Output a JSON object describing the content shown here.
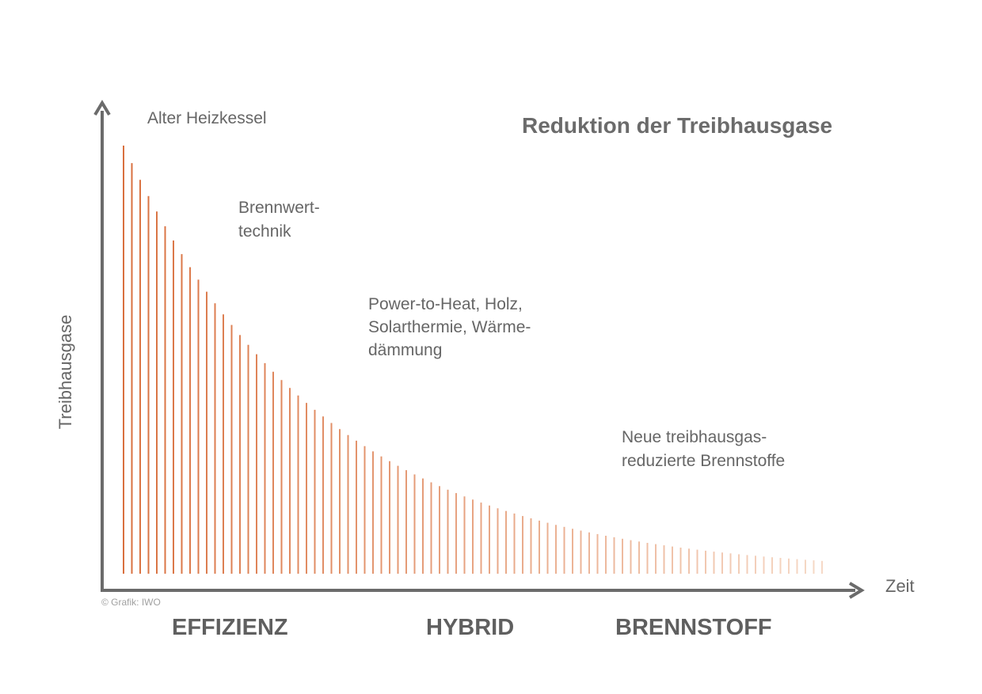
{
  "chart_data": {
    "type": "bar",
    "title": "Reduktion der Treibhausgase",
    "ylabel": "Treibhausgase",
    "xlabel": "Zeit",
    "grid": false,
    "legend": "none",
    "bar_count": 85,
    "values_description_max": 100,
    "values_description_min": 3,
    "decay": "exponential",
    "color_start": "#d9703f",
    "color_end": "#f6d9c7",
    "annotations": [
      {
        "lines": [
          "Alter Heizkessel"
        ]
      },
      {
        "lines": [
          "Brennwert-",
          "technik"
        ]
      },
      {
        "lines": [
          "Power-to-Heat, Holz,",
          "Solarthermie, Wärme-",
          "dämmung"
        ]
      },
      {
        "lines": [
          "Neue treibhausgas-",
          "reduzierte Brennstoffe"
        ]
      }
    ],
    "phases": [
      "EFFIZIENZ",
      "HYBRID",
      "BRENNSTOFF"
    ],
    "credit": "© Grafik: IWO"
  },
  "colors": {
    "axis": "#6b6b6b",
    "text": "#666666"
  }
}
